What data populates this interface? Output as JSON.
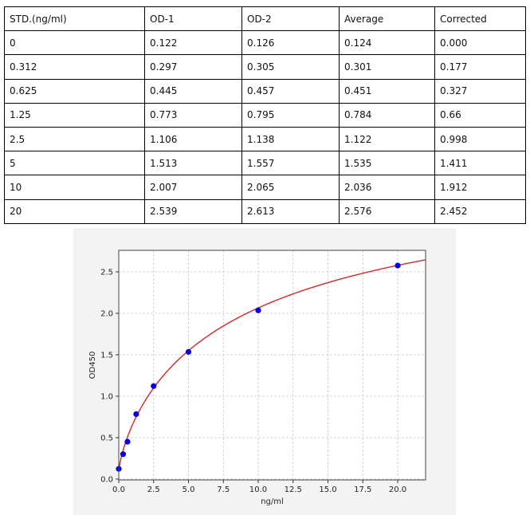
{
  "table": {
    "headers": [
      "STD.(ng/ml)",
      "OD-1",
      "OD-2",
      "Average",
      "Corrected"
    ],
    "rows": [
      [
        "0",
        "0.122",
        "0.126",
        "0.124",
        "0.000"
      ],
      [
        "0.312",
        "0.297",
        "0.305",
        "0.301",
        "0.177"
      ],
      [
        "0.625",
        "0.445",
        "0.457",
        "0.451",
        "0.327"
      ],
      [
        "1.25",
        "0.773",
        "0.795",
        "0.784",
        "0.66"
      ],
      [
        "2.5",
        "1.106",
        "1.138",
        "1.122",
        "0.998"
      ],
      [
        "5",
        "1.513",
        "1.557",
        "1.535",
        "1.411"
      ],
      [
        "10",
        "2.007",
        "2.065",
        "2.036",
        "1.912"
      ],
      [
        "20",
        "2.539",
        "2.613",
        "2.576",
        "2.452"
      ]
    ]
  },
  "chart_data": {
    "type": "scatter",
    "title": "",
    "xlabel": "ng/ml",
    "ylabel": "OD450",
    "xlim": [
      0,
      22
    ],
    "ylim": [
      -0.01,
      2.76
    ],
    "xticks": [
      "0.0",
      "2.5",
      "5.0",
      "7.5",
      "10.0",
      "12.5",
      "15.0",
      "17.5",
      "20.0"
    ],
    "yticks": [
      "0.0",
      "0.5",
      "1.0",
      "1.5",
      "2.0",
      "2.5"
    ],
    "grid": true,
    "points": {
      "x": [
        0,
        0.312,
        0.625,
        1.25,
        2.5,
        5,
        10,
        20
      ],
      "y": [
        0.124,
        0.301,
        0.451,
        0.784,
        1.122,
        1.535,
        2.036,
        2.576
      ],
      "color": "#0000ee"
    },
    "fit_curve": {
      "color": "#d62728"
    }
  }
}
